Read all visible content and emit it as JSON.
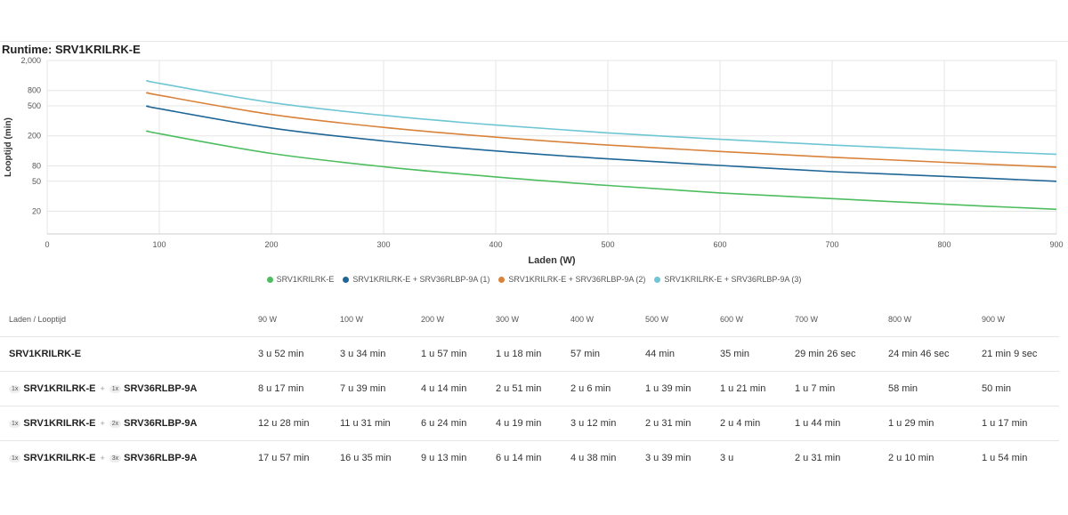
{
  "chart_title": "Runtime: SRV1KRILRK-E",
  "chart_data": {
    "type": "line",
    "title": "Runtime: SRV1KRILRK-E",
    "xlabel": "Laden (W)",
    "ylabel": "Looptijd (min)",
    "xlim": [
      0,
      900
    ],
    "ylim": [
      10,
      2000
    ],
    "y_scale": "log",
    "x_ticks": [
      0,
      100,
      200,
      300,
      400,
      500,
      600,
      700,
      800,
      900
    ],
    "y_ticks": [
      20,
      50,
      80,
      200,
      500,
      800,
      2000
    ],
    "y_tick_labels": [
      "20",
      "50",
      "80",
      "200",
      "500",
      "800",
      "2,000"
    ],
    "grid": true,
    "legend_position": "bottom",
    "x": [
      90,
      100,
      200,
      300,
      400,
      500,
      600,
      700,
      800,
      900
    ],
    "series": [
      {
        "name": "SRV1KRILRK-E",
        "color": "#4dbd5f",
        "values": [
          232,
          214,
          117,
          78,
          57,
          44,
          35,
          29.4,
          24.8,
          21.2
        ]
      },
      {
        "name": "SRV1KRILRK-E + SRV36RLBP-9A (1)",
        "color": "#1f6696",
        "values": [
          497,
          459,
          254,
          171,
          126,
          99,
          81,
          67,
          58,
          50
        ]
      },
      {
        "name": "SRV1KRILRK-E + SRV36RLBP-9A (2)",
        "color": "#d9823b",
        "values": [
          748,
          691,
          384,
          259,
          192,
          151,
          124,
          104,
          89,
          77
        ]
      },
      {
        "name": "SRV1KRILRK-E + SRV36RLBP-9A (3)",
        "color": "#6ec6d4",
        "values": [
          1077,
          995,
          553,
          374,
          278,
          219,
          180,
          151,
          130,
          114
        ]
      }
    ]
  },
  "table": {
    "header_label": "Laden / Looptijd",
    "columns": [
      "90 W",
      "100 W",
      "200 W",
      "300 W",
      "400 W",
      "500 W",
      "600 W",
      "700 W",
      "800 W",
      "900 W"
    ],
    "rows": [
      {
        "model": "SRV1KRILRK-E",
        "qty1": "",
        "battery": "",
        "qty2": "",
        "values": [
          "3 u 52 min",
          "3 u 34 min",
          "1 u 57 min",
          "1 u 18 min",
          "57 min",
          "44 min",
          "35 min",
          "29 min 26 sec",
          "24 min 46 sec",
          "21 min 9 sec"
        ]
      },
      {
        "model": "SRV1KRILRK-E",
        "qty1": "1x",
        "battery": "SRV36RLBP-9A",
        "qty2": "1x",
        "values": [
          "8 u 17 min",
          "7 u 39 min",
          "4 u 14 min",
          "2 u 51 min",
          "2 u 6 min",
          "1 u 39 min",
          "1 u 21 min",
          "1 u 7 min",
          "58 min",
          "50 min"
        ]
      },
      {
        "model": "SRV1KRILRK-E",
        "qty1": "1x",
        "battery": "SRV36RLBP-9A",
        "qty2": "2x",
        "values": [
          "12 u 28 min",
          "11 u 31 min",
          "6 u 24 min",
          "4 u 19 min",
          "3 u 12 min",
          "2 u 31 min",
          "2 u 4 min",
          "1 u 44 min",
          "1 u 29 min",
          "1 u 17 min"
        ]
      },
      {
        "model": "SRV1KRILRK-E",
        "qty1": "1x",
        "battery": "SRV36RLBP-9A",
        "qty2": "3x",
        "values": [
          "17 u 57 min",
          "16 u 35 min",
          "9 u 13 min",
          "6 u 14 min",
          "4 u 38 min",
          "3 u 39 min",
          "3 u",
          "2 u 31 min",
          "2 u 10 min",
          "1 u 54 min"
        ]
      }
    ]
  }
}
